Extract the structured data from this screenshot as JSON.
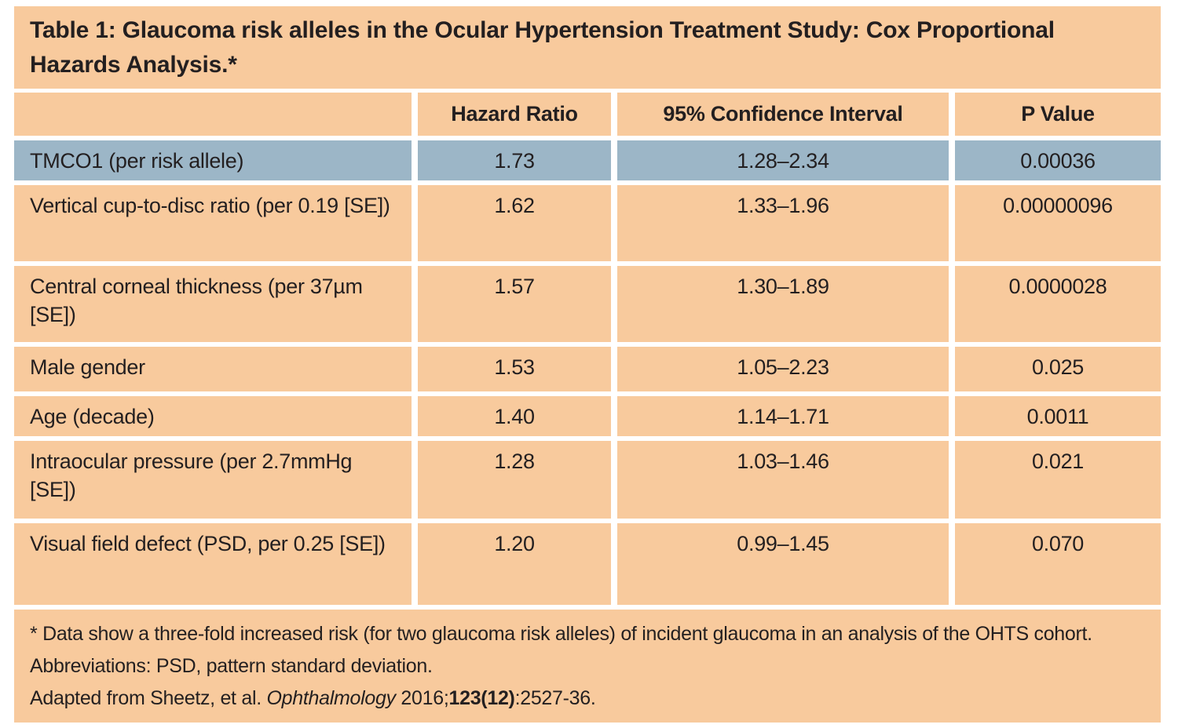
{
  "colors": {
    "background": "#ffffff",
    "peach": "#f8ca9d",
    "blue": "#9cb6c7",
    "text": "#231f20"
  },
  "title": "Table 1: Glaucoma risk alleles in the Ocular Hypertension Treatment Study: Cox Proportional Hazards Analysis.*",
  "table": {
    "headers": {
      "row_label": "",
      "hazard_ratio": "Hazard Ratio",
      "confidence_interval": "95% Confidence Interval",
      "p_value": "P Value"
    },
    "rows": [
      {
        "label": "TMCO1 (per risk allele)",
        "hazard_ratio": "1.73",
        "confidence_interval": "1.28–2.34",
        "p_value": "0.00036",
        "highlighted": true
      },
      {
        "label": "Vertical cup-to-disc ratio (per 0.19 [SE])",
        "hazard_ratio": "1.62",
        "confidence_interval": "1.33–1.96",
        "p_value": "0.00000096",
        "highlighted": false
      },
      {
        "label": "Central corneal thickness (per 37µm [SE])",
        "hazard_ratio": "1.57",
        "confidence_interval": "1.30–1.89",
        "p_value": "0.0000028",
        "highlighted": false
      },
      {
        "label": "Male gender",
        "hazard_ratio": "1.53",
        "confidence_interval": "1.05–2.23",
        "p_value": "0.025",
        "highlighted": false
      },
      {
        "label": "Age (decade)",
        "hazard_ratio": "1.40",
        "confidence_interval": "1.14–1.71",
        "p_value": "0.0011",
        "highlighted": false
      },
      {
        "label": "Intraocular pressure (per 2.7mmHg [SE])",
        "hazard_ratio": "1.28",
        "confidence_interval": "1.03–1.46",
        "p_value": "0.021",
        "highlighted": false
      },
      {
        "label": "Visual field defect (PSD, per 0.25 [SE])",
        "hazard_ratio": "1.20",
        "confidence_interval": "0.99–1.45",
        "p_value": "0.070",
        "highlighted": false
      }
    ]
  },
  "footnotes": {
    "asterisk_note": "* Data show a three-fold increased risk (for two glaucoma risk alleles) of incident glaucoma in an analysis of the OHTS cohort.",
    "abbreviations": "Abbreviations: PSD, pattern standard deviation.",
    "citation": {
      "prefix": "Adapted from Sheetz, et al. ",
      "journal_italic": "Ophthalmology",
      "mid": " 2016;",
      "volume_bold": "123(12)",
      "suffix": ":2527-36."
    }
  }
}
